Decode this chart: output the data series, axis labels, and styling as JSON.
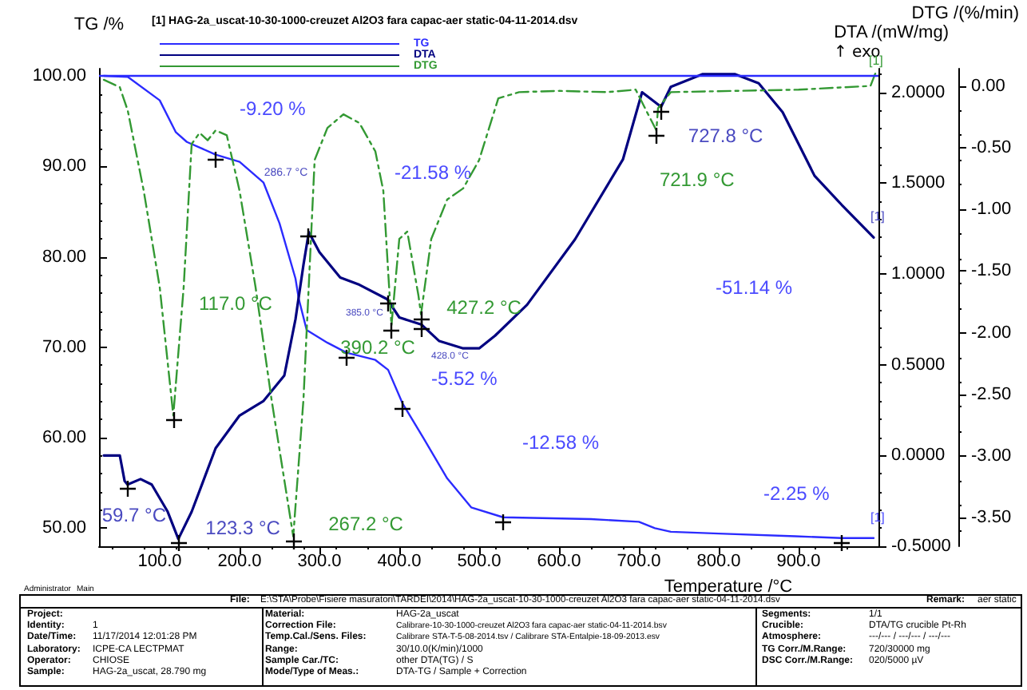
{
  "chart_data": {
    "type": "line",
    "legend_title": "[1] HAG-2a_uscat-10-30-1000-creuzet Al2O3 fara capac-aer static-04-11-2014.dsv",
    "legend": "top left",
    "marker": "none",
    "xlabel": "Temperature /°C",
    "ylabel": "TG /%",
    "y2label": "DTA /(mW/mg)",
    "y3label": "DTG /(%/min)",
    "xlim": [
      24,
      1000
    ],
    "xticks": [
      {
        "value": 100,
        "label": "100.0"
      },
      {
        "value": 200,
        "label": "200.0"
      },
      {
        "value": 300,
        "label": "300.0"
      },
      {
        "value": 400,
        "label": "400.0"
      },
      {
        "value": 500,
        "label": "500.0"
      },
      {
        "value": 600,
        "label": "600.0"
      },
      {
        "value": 700,
        "label": "700.0"
      },
      {
        "value": 800,
        "label": "800.0"
      },
      {
        "value": 900,
        "label": "900.0"
      }
    ],
    "ylim": [
      48,
      100.8
    ],
    "yticks": [
      {
        "value": 50,
        "label": "50.00"
      },
      {
        "value": 60,
        "label": "60.00"
      },
      {
        "value": 70,
        "label": "70.00"
      },
      {
        "value": 80,
        "label": "80.00"
      },
      {
        "value": 90,
        "label": "90.00"
      },
      {
        "value": 100,
        "label": "100.00"
      }
    ],
    "y2lim": [
      -0.5,
      2.13
    ],
    "y2ticks": [
      {
        "value": -0.5,
        "label": "-0.5000"
      },
      {
        "value": 0,
        "label": "0.0000"
      },
      {
        "value": 0.5,
        "label": "0.5000"
      },
      {
        "value": 1,
        "label": "1.0000"
      },
      {
        "value": 1.5,
        "label": "1.5000"
      },
      {
        "value": 2,
        "label": "2.0000"
      }
    ],
    "y3lim": [
      -3.73,
      0.14
    ],
    "y3ticks": [
      {
        "value": -3.5,
        "label": "-3.50"
      },
      {
        "value": -3,
        "label": "-3.00"
      },
      {
        "value": -2.5,
        "label": "-2.50"
      },
      {
        "value": -2,
        "label": "-2.00"
      },
      {
        "value": -1.5,
        "label": "-1.50"
      },
      {
        "value": -1,
        "label": "-1.00"
      },
      {
        "value": -0.5,
        "label": "-0.50"
      },
      {
        "value": 0,
        "label": "0.00"
      }
    ],
    "series": [
      {
        "name": "TG",
        "color": "#2b2bff",
        "axis": "y",
        "line_style": "solid",
        "x": [
          30,
          60,
          100,
          120,
          134,
          170,
          200,
          230,
          250,
          270,
          274,
          284,
          310,
          334,
          370,
          386,
          404,
          430,
          460,
          490,
          530,
          640,
          700,
          720,
          740,
          800,
          896,
          954,
          994
        ],
        "values": [
          100,
          99.9,
          97.3,
          93.8,
          92.7,
          91.3,
          90.5,
          88.2,
          83.7,
          77.6,
          75.4,
          71.9,
          70.5,
          69.4,
          68.6,
          67.5,
          63.8,
          60,
          55.5,
          52.3,
          51.2,
          51.0,
          50.7,
          50.0,
          49.6,
          49.4,
          49.1,
          48.9,
          48.9
        ]
      },
      {
        "name": "DTA",
        "color": "#000080",
        "axis": "y2",
        "line_style": "solid",
        "x": [
          30,
          50,
          56,
          59.7,
          76,
          90,
          110,
          123.3,
          140,
          170,
          200,
          230,
          256,
          270,
          280,
          286.7,
          300,
          326,
          350,
          385.0,
          400,
          428.0,
          450,
          480,
          500,
          520,
          560,
          620,
          680,
          704,
          727.8,
          740,
          780,
          820,
          850,
          880,
          920,
          954,
          994
        ],
        "values": [
          0.0,
          0.0,
          -0.14,
          -0.16,
          -0.13,
          -0.16,
          -0.31,
          -0.46,
          -0.31,
          0.04,
          0.22,
          0.3,
          0.44,
          0.75,
          1.05,
          1.23,
          1.12,
          0.98,
          0.94,
          0.86,
          0.76,
          0.72,
          0.63,
          0.59,
          0.59,
          0.66,
          0.83,
          1.19,
          1.63,
          2.0,
          1.92,
          2.03,
          2.1,
          2.1,
          2.05,
          1.89,
          1.54,
          1.38,
          1.2
        ]
      },
      {
        "name": "DTG",
        "color": "#339933",
        "axis": "y3",
        "line_style": "dashed",
        "x": [
          30,
          50,
          60,
          80,
          100,
          117.0,
          130,
          140,
          150,
          160,
          170,
          184,
          200,
          220,
          240,
          267.2,
          280,
          294,
          310,
          330,
          350,
          370,
          380,
          386,
          390.2,
          400,
          410,
          424,
          427.2,
          440,
          460,
          480,
          500,
          524,
          550,
          600,
          660,
          696,
          710,
          721.9,
          724,
          740,
          820,
          900,
          990,
          996
        ],
        "values": [
          0.05,
          -0.01,
          -0.2,
          -0.85,
          -1.63,
          -2.67,
          -1.63,
          -0.47,
          -0.38,
          -0.44,
          -0.36,
          -0.4,
          -0.85,
          -1.63,
          -2.54,
          -3.65,
          -2.54,
          -0.6,
          -0.34,
          -0.23,
          -0.3,
          -0.53,
          -0.85,
          -1.5,
          -1.94,
          -1.24,
          -1.18,
          -1.7,
          -1.85,
          -1.24,
          -0.92,
          -0.83,
          -0.6,
          -0.1,
          -0.05,
          -0.04,
          -0.05,
          -0.03,
          -0.21,
          -0.36,
          -0.18,
          -0.05,
          -0.04,
          -0.03,
          0.0,
          0.1
        ]
      }
    ],
    "ref_lines": [
      {
        "axis": "y",
        "value": 100,
        "color": "#2b2bff"
      }
    ],
    "annotations": [
      "117.0 °C",
      "267.2 °C",
      "390.2 °C",
      "427.2 °C",
      "721.9 °C",
      "59.7 °C",
      "123.3 °C",
      "286.7 °C",
      "385.0 °C",
      "428.0 °C",
      "727.8 °C",
      "[1]",
      "[1]",
      "[1]",
      "-9.20 %",
      "-21.58 %",
      "-5.52 %",
      "-12.58 %",
      "-51.14 %",
      "-2.25 %",
      "↑ exo",
      "Administrator",
      "Main",
      "File:",
      "E:\\STA\\Probe\\Fisiere masuratori\\TARDEI\\2014\\HAG-2a_uscat-10-30-1000-creuzet Al2O3 fara capac-aer static-04-11-2014.dsv",
      "Remark:",
      "aer static",
      "Project:",
      "Identity:",
      "1",
      "Date/Time:",
      "11/17/2014 12:01:28 PM",
      "Laboratory:",
      "ICPE-CA LECTPMAT",
      "Operator:",
      "CHIOSE",
      "Sample:",
      "HAG-2a_uscat, 28.790 mg",
      "Material:",
      "HAG-2a_uscat",
      "Correction File:",
      "Calibrare-10-30-1000-creuzet Al2O3 fara capac-aer static-04-11-2014.bsv",
      "Temp.Cal./Sens. Files:",
      "Calibrare STA-T-5-08-2014.tsv / Calibrare STA-Entalpie-18-09-2013.esv",
      "Range:",
      "30/10.0(K/min)/1000",
      "Sample Car./TC:",
      "other DTA(TG) / S",
      "Mode/Type of Meas.:",
      "DTA-TG / Sample + Correction",
      "Segments:",
      "1/1",
      "Crucible:",
      "DTA/TG crucible Pt-Rh",
      "Atmosphere:",
      "---/--- / ---/--- / ---/---",
      "TG Corr./M.Range:",
      "720/30000 mg",
      "DSC Corr./M.Range:",
      "020/5000 µV"
    ]
  }
}
